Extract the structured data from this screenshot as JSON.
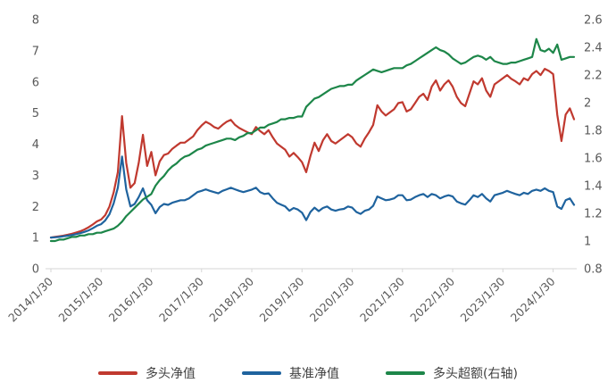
{
  "chart_data": {
    "type": "line",
    "title": "",
    "grid": false,
    "legend_position": "bottom-center",
    "background": "#ffffff",
    "axis_text_color": "#595959",
    "axis_line_color": "#d6d6d6",
    "left_axis": {
      "min": 0,
      "max": 8,
      "ticks": [
        0,
        1,
        2,
        3,
        4,
        5,
        6,
        7,
        8
      ]
    },
    "right_axis": {
      "min": 0.8,
      "max": 2.6,
      "ticks": [
        0.8,
        1,
        1.2,
        1.4,
        1.6,
        1.8,
        2,
        2.2,
        2.4,
        2.6
      ]
    },
    "x_unit": "months from 2014/01, tick at each 1/30 yearly date",
    "x_ticks": [
      {
        "index": 0,
        "label": "2014/1/30"
      },
      {
        "index": 12,
        "label": "2015/1/30"
      },
      {
        "index": 24,
        "label": "2016/1/30"
      },
      {
        "index": 36,
        "label": "2017/1/30"
      },
      {
        "index": 48,
        "label": "2018/1/30"
      },
      {
        "index": 60,
        "label": "2019/1/30"
      },
      {
        "index": 72,
        "label": "2020/1/30"
      },
      {
        "index": 84,
        "label": "2021/1/30"
      },
      {
        "index": 96,
        "label": "2022/1/30"
      },
      {
        "index": 108,
        "label": "2023/1/30"
      },
      {
        "index": 120,
        "label": "2024/1/30"
      }
    ],
    "series": [
      {
        "name": "多头净值",
        "axis": "left",
        "color": "#c0392f",
        "values": [
          1.0,
          1.02,
          1.04,
          1.06,
          1.09,
          1.12,
          1.16,
          1.2,
          1.26,
          1.33,
          1.42,
          1.52,
          1.58,
          1.72,
          2.0,
          2.45,
          3.1,
          4.9,
          3.4,
          2.6,
          2.75,
          3.4,
          4.3,
          3.3,
          3.75,
          3.0,
          3.45,
          3.65,
          3.7,
          3.85,
          3.95,
          4.05,
          4.05,
          4.15,
          4.25,
          4.45,
          4.6,
          4.72,
          4.65,
          4.55,
          4.5,
          4.62,
          4.72,
          4.78,
          4.62,
          4.52,
          4.45,
          4.38,
          4.32,
          4.55,
          4.42,
          4.32,
          4.45,
          4.22,
          4.02,
          3.92,
          3.82,
          3.6,
          3.72,
          3.58,
          3.42,
          3.1,
          3.62,
          4.05,
          3.78,
          4.12,
          4.32,
          4.1,
          4.02,
          4.12,
          4.22,
          4.32,
          4.22,
          4.02,
          3.92,
          4.18,
          4.38,
          4.62,
          5.25,
          5.05,
          4.92,
          5.02,
          5.12,
          5.32,
          5.35,
          5.05,
          5.12,
          5.32,
          5.52,
          5.62,
          5.42,
          5.85,
          6.05,
          5.72,
          5.92,
          6.05,
          5.85,
          5.52,
          5.32,
          5.22,
          5.62,
          6.02,
          5.92,
          6.12,
          5.72,
          5.52,
          5.92,
          6.02,
          6.12,
          6.22,
          6.1,
          6.02,
          5.92,
          6.12,
          6.05,
          6.25,
          6.35,
          6.22,
          6.42,
          6.35,
          6.25,
          4.95,
          4.1,
          4.95,
          5.15,
          4.8
        ]
      },
      {
        "name": "基准净值",
        "axis": "left",
        "color": "#1f639e",
        "values": [
          1.0,
          1.01,
          1.02,
          1.04,
          1.06,
          1.08,
          1.11,
          1.14,
          1.18,
          1.23,
          1.3,
          1.38,
          1.43,
          1.55,
          1.75,
          2.1,
          2.6,
          3.6,
          2.55,
          2.0,
          2.08,
          2.3,
          2.58,
          2.2,
          2.05,
          1.78,
          1.98,
          2.08,
          2.05,
          2.12,
          2.16,
          2.2,
          2.2,
          2.26,
          2.36,
          2.46,
          2.5,
          2.55,
          2.5,
          2.46,
          2.42,
          2.5,
          2.55,
          2.6,
          2.55,
          2.5,
          2.46,
          2.5,
          2.54,
          2.6,
          2.46,
          2.4,
          2.42,
          2.26,
          2.12,
          2.06,
          2.0,
          1.86,
          1.95,
          1.9,
          1.8,
          1.56,
          1.82,
          1.96,
          1.85,
          1.95,
          2.0,
          1.9,
          1.86,
          1.9,
          1.92,
          2.0,
          1.96,
          1.82,
          1.76,
          1.86,
          1.9,
          2.02,
          2.32,
          2.26,
          2.2,
          2.22,
          2.26,
          2.36,
          2.36,
          2.2,
          2.22,
          2.3,
          2.36,
          2.4,
          2.3,
          2.4,
          2.36,
          2.26,
          2.32,
          2.36,
          2.32,
          2.16,
          2.1,
          2.06,
          2.2,
          2.36,
          2.3,
          2.4,
          2.26,
          2.16,
          2.36,
          2.4,
          2.44,
          2.5,
          2.45,
          2.4,
          2.36,
          2.44,
          2.4,
          2.5,
          2.54,
          2.5,
          2.58,
          2.5,
          2.46,
          2.0,
          1.92,
          2.2,
          2.26,
          2.05
        ]
      },
      {
        "name": "多头超额(右轴)",
        "axis": "right",
        "color": "#1d8649",
        "values": [
          1.0,
          1.0,
          1.01,
          1.01,
          1.02,
          1.03,
          1.03,
          1.04,
          1.04,
          1.05,
          1.05,
          1.06,
          1.06,
          1.07,
          1.08,
          1.09,
          1.11,
          1.14,
          1.18,
          1.21,
          1.24,
          1.27,
          1.3,
          1.32,
          1.34,
          1.4,
          1.44,
          1.47,
          1.51,
          1.54,
          1.56,
          1.59,
          1.61,
          1.62,
          1.64,
          1.66,
          1.67,
          1.69,
          1.7,
          1.71,
          1.72,
          1.73,
          1.74,
          1.74,
          1.73,
          1.75,
          1.76,
          1.78,
          1.78,
          1.8,
          1.82,
          1.82,
          1.84,
          1.85,
          1.86,
          1.88,
          1.88,
          1.89,
          1.89,
          1.9,
          1.9,
          1.97,
          2.0,
          2.03,
          2.04,
          2.06,
          2.08,
          2.1,
          2.11,
          2.12,
          2.12,
          2.13,
          2.13,
          2.16,
          2.18,
          2.2,
          2.22,
          2.24,
          2.23,
          2.22,
          2.23,
          2.24,
          2.25,
          2.25,
          2.25,
          2.27,
          2.28,
          2.3,
          2.32,
          2.34,
          2.36,
          2.38,
          2.4,
          2.38,
          2.37,
          2.35,
          2.32,
          2.3,
          2.28,
          2.29,
          2.31,
          2.33,
          2.34,
          2.33,
          2.31,
          2.33,
          2.3,
          2.29,
          2.28,
          2.28,
          2.29,
          2.29,
          2.3,
          2.31,
          2.32,
          2.33,
          2.46,
          2.38,
          2.37,
          2.39,
          2.36,
          2.42,
          2.31,
          2.32,
          2.33,
          2.33
        ]
      }
    ]
  }
}
